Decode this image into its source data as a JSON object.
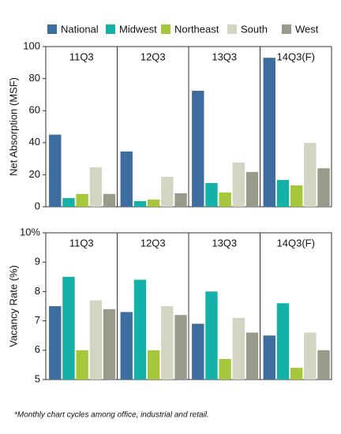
{
  "chart_data": [
    {
      "type": "bar",
      "ylabel": "Net Absorption (MSF)",
      "categories": [
        "11Q3",
        "12Q3",
        "13Q3",
        "14Q3(F)"
      ],
      "series": [
        {
          "name": "National",
          "color": "#3d6d9e",
          "values": [
            45,
            34.5,
            72.4,
            93
          ]
        },
        {
          "name": "Midwest",
          "color": "#14b1a8",
          "values": [
            5.4,
            3.5,
            14.8,
            16.7
          ]
        },
        {
          "name": "Northeast",
          "color": "#a6c63c",
          "values": [
            8,
            4.5,
            8.9,
            13.3
          ]
        },
        {
          "name": "South",
          "color": "#d4d4c3",
          "values": [
            24.6,
            18.7,
            27.6,
            39.9
          ]
        },
        {
          "name": "West",
          "color": "#9a9a8a",
          "values": [
            8,
            8.4,
            21.7,
            24
          ]
        }
      ],
      "ylim": [
        0,
        100
      ],
      "yticks": [
        0,
        20,
        40,
        60,
        80,
        100
      ]
    },
    {
      "type": "bar",
      "ylabel": "Vacancy Rate (%)",
      "categories": [
        "11Q3",
        "12Q3",
        "13Q3",
        "14Q3(F)"
      ],
      "series": [
        {
          "color": "#3d6d9e",
          "values": [
            7.5,
            7.3,
            6.9,
            6.5
          ]
        },
        {
          "color": "#14b1a8",
          "values": [
            8.5,
            8.4,
            8.0,
            7.6
          ]
        },
        {
          "color": "#a6c63c",
          "values": [
            6.0,
            6.0,
            5.7,
            5.4
          ]
        },
        {
          "color": "#d4d4c3",
          "values": [
            7.7,
            7.5,
            7.1,
            6.6
          ]
        },
        {
          "color": "#9a9a8a",
          "values": [
            7.4,
            7.2,
            6.6,
            6.0
          ]
        }
      ],
      "ylim": [
        5,
        10
      ],
      "yticks": [
        5,
        6,
        7,
        8,
        9,
        {
          "value": 10,
          "label": "10%"
        }
      ]
    }
  ],
  "footnote": "*Monthly chart cycles among office, industrial and retail."
}
